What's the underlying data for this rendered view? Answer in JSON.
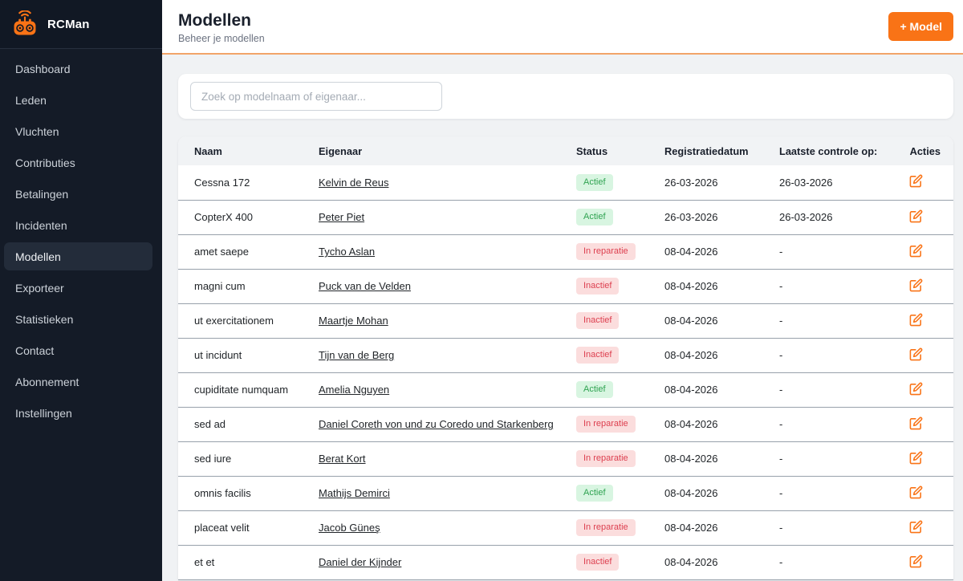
{
  "app": {
    "name": "RCMan"
  },
  "sidebar": {
    "items": [
      {
        "label": "Dashboard",
        "active": false
      },
      {
        "label": "Leden",
        "active": false
      },
      {
        "label": "Vluchten",
        "active": false
      },
      {
        "label": "Contributies",
        "active": false
      },
      {
        "label": "Betalingen",
        "active": false
      },
      {
        "label": "Incidenten",
        "active": false
      },
      {
        "label": "Modellen",
        "active": true
      },
      {
        "label": "Exporteer",
        "active": false
      },
      {
        "label": "Statistieken",
        "active": false
      },
      {
        "label": "Contact",
        "active": false
      },
      {
        "label": "Abonnement",
        "active": false
      },
      {
        "label": "Instellingen",
        "active": false
      }
    ]
  },
  "header": {
    "title": "Modellen",
    "subtitle": "Beheer je modellen",
    "add_button": "+ Model"
  },
  "search": {
    "placeholder": "Zoek op modelnaam of eigenaar..."
  },
  "table": {
    "columns": [
      "Naam",
      "Eigenaar",
      "Status",
      "Registratiedatum",
      "Laatste controle op:",
      "Acties"
    ],
    "rows": [
      {
        "naam": "Cessna 172",
        "eigenaar": "Kelvin de Reus",
        "status": "Actief",
        "status_color": "green",
        "registratiedatum": "26-03-2026",
        "laatste_controle": "26-03-2026"
      },
      {
        "naam": "CopterX 400",
        "eigenaar": "Peter Piet",
        "status": "Actief",
        "status_color": "green",
        "registratiedatum": "26-03-2026",
        "laatste_controle": "26-03-2026"
      },
      {
        "naam": "amet saepe",
        "eigenaar": "Tycho Aslan",
        "status": "In reparatie",
        "status_color": "red",
        "registratiedatum": "08-04-2026",
        "laatste_controle": "-"
      },
      {
        "naam": "magni cum",
        "eigenaar": "Puck van de Velden",
        "status": "Inactief",
        "status_color": "red",
        "registratiedatum": "08-04-2026",
        "laatste_controle": "-"
      },
      {
        "naam": "ut exercitationem",
        "eigenaar": "Maartje Mohan",
        "status": "Inactief",
        "status_color": "red",
        "registratiedatum": "08-04-2026",
        "laatste_controle": "-"
      },
      {
        "naam": "ut incidunt",
        "eigenaar": "Tijn van de Berg",
        "status": "Inactief",
        "status_color": "red",
        "registratiedatum": "08-04-2026",
        "laatste_controle": "-"
      },
      {
        "naam": "cupiditate numquam",
        "eigenaar": "Amelia Nguyen",
        "status": "Actief",
        "status_color": "green",
        "registratiedatum": "08-04-2026",
        "laatste_controle": "-"
      },
      {
        "naam": "sed ad",
        "eigenaar": "Daniel Coreth von und zu Coredo und Starkenberg",
        "status": "In reparatie",
        "status_color": "red",
        "registratiedatum": "08-04-2026",
        "laatste_controle": "-"
      },
      {
        "naam": "sed iure",
        "eigenaar": "Berat Kort",
        "status": "In reparatie",
        "status_color": "red",
        "registratiedatum": "08-04-2026",
        "laatste_controle": "-"
      },
      {
        "naam": "omnis facilis",
        "eigenaar": "Mathijs Demirci",
        "status": "Actief",
        "status_color": "green",
        "registratiedatum": "08-04-2026",
        "laatste_controle": "-"
      },
      {
        "naam": "placeat velit",
        "eigenaar": "Jacob Güneş",
        "status": "In reparatie",
        "status_color": "red",
        "registratiedatum": "08-04-2026",
        "laatste_controle": "-"
      },
      {
        "naam": "et et",
        "eigenaar": "Daniel der Kijnder",
        "status": "Inactief",
        "status_color": "red",
        "registratiedatum": "08-04-2026",
        "laatste_controle": "-"
      }
    ]
  },
  "icons": {
    "logo": "rc-controller-icon",
    "edit": "edit-pencil-square-icon"
  },
  "colors": {
    "accent": "#f97316",
    "header_border": "#f2a469",
    "sidebar_bg": "#141b27",
    "sidebar_active_bg": "#232c3a",
    "status_active_bg": "#d8f5e1",
    "status_active_text": "#2fa351",
    "status_inactive_bg": "#fbdddd",
    "status_inactive_text": "#dd4050"
  }
}
